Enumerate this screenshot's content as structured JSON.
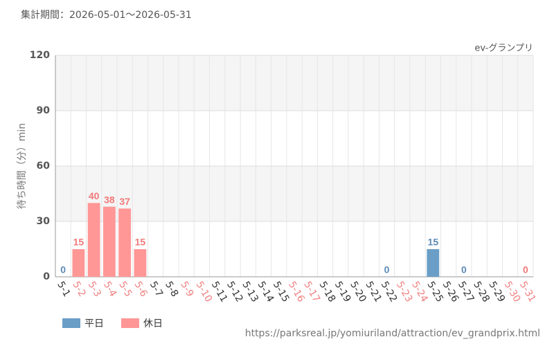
{
  "header": "集計期間：2026-05-01～2026-05-31",
  "footer": "https://parksreal.jp/yomiuriland/attraction/ev_grandprix.html",
  "chart_data": {
    "type": "bar",
    "subtitle": "ev-グランプリ",
    "y_label": "待ち時間（分）min",
    "categories": [
      "5-1",
      "5-2",
      "5-3",
      "5-4",
      "5-5",
      "5-6",
      "5-7",
      "5-8",
      "5-9",
      "5-10",
      "5-11",
      "5-12",
      "5-13",
      "5-14",
      "5-15",
      "5-16",
      "5-17",
      "5-18",
      "5-19",
      "5-20",
      "5-21",
      "5-22",
      "5-23",
      "5-24",
      "5-25",
      "5-26",
      "5-27",
      "5-28",
      "5-29",
      "5-30",
      "5-31"
    ],
    "category_label_colors": [
      "#333",
      "#f08080",
      "#f08080",
      "#f08080",
      "#f08080",
      "#f08080",
      "#333",
      "#333",
      "#f08080",
      "#f08080",
      "#333",
      "#333",
      "#333",
      "#333",
      "#333",
      "#f08080",
      "#f08080",
      "#333",
      "#333",
      "#333",
      "#333",
      "#333",
      "#f08080",
      "#f08080",
      "#333",
      "#333",
      "#333",
      "#333",
      "#333",
      "#f08080",
      "#f08080"
    ],
    "series": [
      {
        "name": "平日",
        "color": "#6a9ec7",
        "label_color": "#5a8ab5",
        "values": [
          0,
          null,
          null,
          null,
          null,
          null,
          null,
          null,
          null,
          null,
          null,
          null,
          null,
          null,
          null,
          null,
          null,
          null,
          null,
          null,
          null,
          0,
          null,
          null,
          15,
          null,
          0,
          null,
          null,
          null,
          null
        ]
      },
      {
        "name": "休日",
        "color": "#ff9797",
        "label_color": "#f07878",
        "values": [
          null,
          15,
          40,
          38,
          37,
          15,
          null,
          null,
          null,
          null,
          null,
          null,
          null,
          null,
          null,
          null,
          null,
          null,
          null,
          null,
          null,
          null,
          null,
          null,
          null,
          null,
          null,
          null,
          null,
          null,
          0
        ]
      }
    ],
    "ylim": [
      0,
      120
    ],
    "yticks": [
      0,
      30,
      60,
      90,
      120
    ],
    "grid": true,
    "grid_band_color": "#f5f5f5"
  }
}
